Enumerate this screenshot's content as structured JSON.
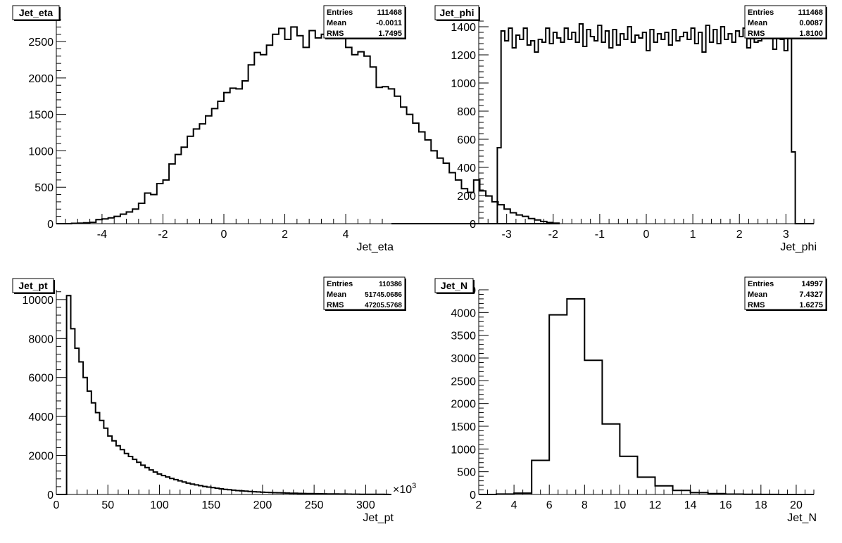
{
  "chart_data": [
    {
      "type": "histogram",
      "title": "Jet_eta",
      "xlabel": "Jet_eta",
      "xlim": [
        -5.5,
        5.5
      ],
      "ylim": [
        0,
        2800
      ],
      "xticks": [
        -4,
        -2,
        0,
        2,
        4
      ],
      "yticks": [
        0,
        500,
        1000,
        1500,
        2000,
        2500
      ],
      "stats": {
        "Entries": "111468",
        "Mean": "-0.0011",
        "RMS": "1.7495"
      },
      "bin_edges_start": -5.0,
      "bin_width": 0.2,
      "values": [
        5,
        8,
        12,
        18,
        55,
        65,
        80,
        100,
        130,
        160,
        200,
        280,
        420,
        400,
        550,
        600,
        820,
        950,
        1050,
        1200,
        1300,
        1370,
        1480,
        1580,
        1680,
        1800,
        1860,
        1850,
        1960,
        2180,
        2350,
        2320,
        2450,
        2600,
        2680,
        2530,
        2700,
        2580,
        2420,
        2650,
        2550,
        2600,
        2620,
        2650,
        2550,
        2420,
        2320,
        2360,
        2300,
        2150,
        1870,
        1880,
        1850,
        1750,
        1600,
        1500,
        1380,
        1260,
        1150,
        1000,
        900,
        830,
        700,
        600,
        480,
        430,
        600,
        450,
        380,
        300,
        260,
        200,
        150,
        120,
        100,
        70,
        50,
        30,
        15,
        8
      ]
    },
    {
      "type": "histogram",
      "title": "Jet_phi",
      "xlabel": "Jet_phi",
      "xlim": [
        -3.6,
        3.6
      ],
      "ylim": [
        0,
        1450
      ],
      "xticks": [
        -3,
        -2,
        -1,
        0,
        1,
        2,
        3
      ],
      "yticks": [
        0,
        200,
        400,
        600,
        800,
        1000,
        1200,
        1400
      ],
      "stats": {
        "Entries": "111468",
        "Mean": "0.0087",
        "RMS": "1.8100"
      },
      "bin_edges_start": -3.2,
      "bin_width": 0.08,
      "values": [
        540,
        1370,
        1300,
        1390,
        1250,
        1340,
        1310,
        1390,
        1270,
        1300,
        1220,
        1310,
        1290,
        1390,
        1280,
        1360,
        1320,
        1290,
        1390,
        1310,
        1360,
        1290,
        1420,
        1260,
        1380,
        1330,
        1300,
        1410,
        1290,
        1370,
        1250,
        1380,
        1270,
        1350,
        1310,
        1400,
        1290,
        1340,
        1320,
        1360,
        1230,
        1380,
        1290,
        1350,
        1310,
        1360,
        1270,
        1380,
        1300,
        1330,
        1360,
        1310,
        1390,
        1280,
        1360,
        1220,
        1410,
        1290,
        1380,
        1280,
        1400,
        1310,
        1350,
        1290,
        1370,
        1330,
        1390,
        1250,
        1410,
        1290,
        1300,
        1380,
        1330,
        1390,
        1240,
        1380,
        1310,
        1230,
        1370,
        510
      ]
    },
    {
      "type": "histogram",
      "title": "Jet_pt",
      "xlabel": "Jet_pt",
      "xlim": [
        0,
        325
      ],
      "ylim": [
        0,
        10500
      ],
      "xticks": [
        0,
        50,
        100,
        150,
        200,
        250,
        300
      ],
      "yticks": [
        0,
        2000,
        4000,
        6000,
        8000,
        10000
      ],
      "axis_multiplier": "×10",
      "axis_multiplier_exp": "3",
      "stats": {
        "Entries": "110386",
        "Mean": "51745.0686",
        "RMS": "47205.5768"
      },
      "bin_edges_start": 10,
      "bin_width": 4,
      "values": [
        10200,
        8500,
        7500,
        6800,
        6000,
        5300,
        4700,
        4200,
        3800,
        3400,
        3000,
        2750,
        2500,
        2300,
        2100,
        1950,
        1800,
        1650,
        1500,
        1380,
        1260,
        1150,
        1050,
        970,
        900,
        820,
        760,
        700,
        640,
        580,
        530,
        490,
        450,
        410,
        380,
        350,
        320,
        290,
        265,
        240,
        220,
        200,
        185,
        170,
        155,
        140,
        130,
        120,
        110,
        100,
        92,
        85,
        78,
        72,
        66,
        60,
        55,
        50,
        46,
        42,
        38,
        35,
        32,
        29,
        26,
        24,
        22,
        20,
        18,
        16,
        14,
        12,
        10,
        9,
        8,
        7,
        6,
        5
      ]
    },
    {
      "type": "histogram",
      "title": "Jet_N",
      "xlabel": "Jet_N",
      "xlim": [
        2,
        21
      ],
      "ylim": [
        0,
        4500
      ],
      "xticks": [
        2,
        4,
        6,
        8,
        10,
        12,
        14,
        16,
        18,
        20
      ],
      "yticks": [
        0,
        500,
        1000,
        1500,
        2000,
        2500,
        3000,
        3500,
        4000,
        4500
      ],
      "stats": {
        "Entries": "14997",
        "Mean": "7.4327",
        "RMS": "1.6275"
      },
      "bin_edges_start": 2,
      "bin_width": 1,
      "values": [
        0,
        10,
        30,
        750,
        3950,
        4300,
        2950,
        1550,
        840,
        380,
        190,
        90,
        40,
        20,
        8,
        3,
        1,
        0,
        0
      ]
    }
  ]
}
